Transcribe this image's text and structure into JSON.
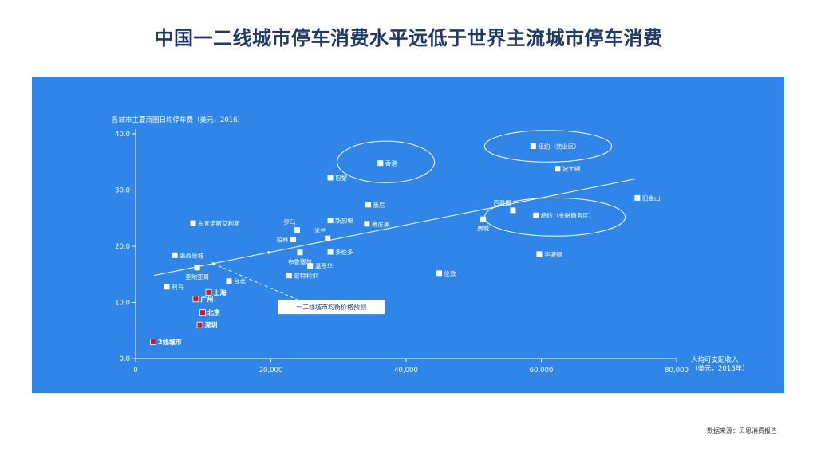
{
  "title": "中国一二线城市停车消费水平远低于世界主流城市停车消费",
  "source": "数据来源：贝恩消费报告",
  "chart_data": {
    "type": "scatter",
    "ylabel": "各城市主要商圈日均停车费（美元，2016）",
    "xlabel_line1": "人均可支配收入",
    "xlabel_line2": "（美元，2016年）",
    "xlim": [
      0,
      80000
    ],
    "ylim": [
      0,
      40
    ],
    "x_ticks": [
      {
        "value": 0,
        "label": "0"
      },
      {
        "value": 20000,
        "label": "20,000"
      },
      {
        "value": 40000,
        "label": "40,000"
      },
      {
        "value": 60000,
        "label": "60,000"
      },
      {
        "value": 80000,
        "label": "80,000"
      }
    ],
    "y_ticks": [
      {
        "value": 0,
        "label": "0.0"
      },
      {
        "value": 10,
        "label": "10.0"
      },
      {
        "value": 20,
        "label": "20.0"
      },
      {
        "value": 30,
        "label": "30.0"
      },
      {
        "value": 40,
        "label": "40.0"
      }
    ],
    "points": [
      {
        "name": "纽约（商业区）",
        "x": 58800,
        "y": 37.8,
        "group": "world",
        "label_pos": "right"
      },
      {
        "name": "波士顿",
        "x": 62400,
        "y": 33.8,
        "group": "world",
        "label_pos": "right"
      },
      {
        "name": "旧金山",
        "x": 74200,
        "y": 28.6,
        "group": "world",
        "label_pos": "right"
      },
      {
        "name": "香港",
        "x": 36200,
        "y": 34.8,
        "group": "world",
        "label_pos": "right"
      },
      {
        "name": "巴黎",
        "x": 28800,
        "y": 32.2,
        "group": "world",
        "label_pos": "right"
      },
      {
        "name": "西雅图",
        "x": 55800,
        "y": 26.4,
        "group": "world",
        "label_pos": "above-left"
      },
      {
        "name": "纽约（金融商务区）",
        "x": 59200,
        "y": 25.5,
        "group": "world",
        "label_pos": "right"
      },
      {
        "name": "悉尼",
        "x": 34400,
        "y": 27.4,
        "group": "world",
        "label_pos": "right"
      },
      {
        "name": "新加坡",
        "x": 28800,
        "y": 24.6,
        "group": "world",
        "label_pos": "right"
      },
      {
        "name": "慕尼黑",
        "x": 34200,
        "y": 24.0,
        "group": "world",
        "label_pos": "right"
      },
      {
        "name": "费城",
        "x": 51400,
        "y": 24.8,
        "group": "world",
        "label_pos": "below"
      },
      {
        "name": "布宜诺斯艾利斯",
        "x": 8500,
        "y": 24.1,
        "group": "world",
        "label_pos": "right"
      },
      {
        "name": "罗马",
        "x": 23900,
        "y": 22.9,
        "group": "world",
        "label_pos": "above-left"
      },
      {
        "name": "米兰",
        "x": 28400,
        "y": 21.4,
        "group": "world",
        "label_pos": "above-left"
      },
      {
        "name": "柏林",
        "x": 23300,
        "y": 21.2,
        "group": "world",
        "label_pos": "left"
      },
      {
        "name": "墨西哥城",
        "x": 5800,
        "y": 18.4,
        "group": "world",
        "label_pos": "right"
      },
      {
        "name": "多伦多",
        "x": 28800,
        "y": 19.0,
        "group": "world",
        "label_pos": "right"
      },
      {
        "name": "华盛顿",
        "x": 59700,
        "y": 18.6,
        "group": "world",
        "label_pos": "right"
      },
      {
        "name": "布鲁塞尔",
        "x": 24300,
        "y": 18.9,
        "group": "world",
        "label_pos": "below"
      },
      {
        "name": "温哥华",
        "x": 25800,
        "y": 16.5,
        "group": "world",
        "label_pos": "right"
      },
      {
        "name": "圣地亚哥",
        "x": 9100,
        "y": 16.2,
        "group": "world",
        "label_pos": "below"
      },
      {
        "name": "伦敦",
        "x": 44900,
        "y": 15.2,
        "group": "world",
        "label_pos": "right"
      },
      {
        "name": "蒙特利尔",
        "x": 22700,
        "y": 14.8,
        "group": "world",
        "label_pos": "right"
      },
      {
        "name": "台北",
        "x": 13800,
        "y": 13.8,
        "group": "world",
        "label_pos": "right"
      },
      {
        "name": "利马",
        "x": 4600,
        "y": 12.8,
        "group": "world",
        "label_pos": "right"
      },
      {
        "name": "上海",
        "x": 10800,
        "y": 11.8,
        "group": "china",
        "label_pos": "right"
      },
      {
        "name": "广州",
        "x": 8900,
        "y": 10.6,
        "group": "china",
        "label_pos": "right"
      },
      {
        "name": "北京",
        "x": 9900,
        "y": 8.2,
        "group": "china",
        "label_pos": "right"
      },
      {
        "name": "深圳",
        "x": 9500,
        "y": 6.0,
        "group": "china",
        "label_pos": "right"
      },
      {
        "name": "2线城市",
        "x": 2600,
        "y": 3.0,
        "group": "china",
        "label_pos": "right"
      }
    ],
    "trendline": {
      "x1": 2700,
      "y1": 14.8,
      "x2": 74000,
      "y2": 32.0
    },
    "annotation": {
      "text": "一二线城市均衡价格预测",
      "from": {
        "x": 11500,
        "y": 16.9
      },
      "box_x": 21000,
      "box_y": 9.2
    },
    "annotation_dots": [
      {
        "x": 11500,
        "y": 16.9
      },
      {
        "x": 19700,
        "y": 18.9
      }
    ],
    "highlight_ellipses": [
      {
        "cx": 37000,
        "cy": 35.0,
        "rx": 7200,
        "ry": 3.7
      },
      {
        "cx": 61000,
        "cy": 37.8,
        "rx": 9400,
        "ry": 2.8
      },
      {
        "cx": 62000,
        "cy": 25.2,
        "rx": 10400,
        "ry": 3.4
      }
    ],
    "colors": {
      "panel": "#2f86e8",
      "axis": "#ffffff",
      "world_marker": "#ffffff",
      "china_marker": "#c81e24",
      "title": "#1f3a66"
    }
  }
}
